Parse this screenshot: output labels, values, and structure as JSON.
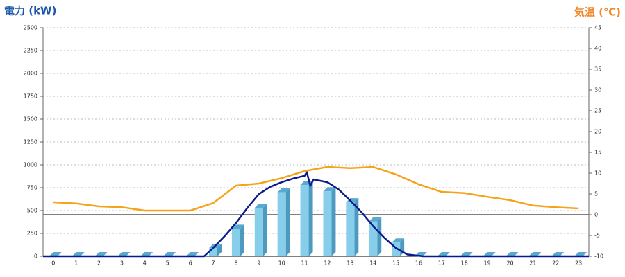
{
  "chart_data": {
    "type": "combo",
    "y_label": "電力 (kW)",
    "y2_label": "気温 (℃)",
    "categories": [
      "0",
      "1",
      "2",
      "3",
      "4",
      "5",
      "6",
      "7",
      "8",
      "9",
      "10",
      "11",
      "12",
      "13",
      "14",
      "15",
      "16",
      "17",
      "18",
      "19",
      "20",
      "21",
      "22",
      "23"
    ],
    "xlim": [
      -0.45,
      23.45
    ],
    "ylim": [
      0,
      2500
    ],
    "yticks": [
      0,
      250,
      500,
      750,
      1000,
      1250,
      1500,
      1750,
      2000,
      2250,
      2500
    ],
    "y2lim": [
      -10,
      45
    ],
    "y2ticks": [
      -10,
      -5,
      0,
      5,
      10,
      15,
      20,
      25,
      30,
      35,
      40,
      45
    ],
    "grid": true,
    "series": [
      {
        "type": "bar",
        "color": "#87ceeb",
        "values": [
          0,
          0,
          0,
          0,
          0,
          0,
          0,
          90,
          300,
          530,
          700,
          780,
          710,
          590,
          380,
          150,
          0,
          0,
          0,
          0,
          0,
          0,
          0,
          0
        ]
      },
      {
        "type": "line",
        "color": "#0a1a8c",
        "x": [
          -0.45,
          6.6,
          7,
          7.5,
          8,
          8.5,
          9,
          9.5,
          10,
          10.5,
          11,
          11.1,
          11.25,
          11.4,
          12,
          12.5,
          13,
          13.5,
          14,
          14.5,
          15,
          15.5,
          16.2,
          23.45
        ],
        "values": [
          0,
          0,
          91,
          220,
          364,
          530,
          680,
          760,
          810,
          850,
          880,
          920,
          773,
          840,
          810,
          730,
          610,
          480,
          330,
          200,
          90,
          20,
          0,
          0
        ]
      },
      {
        "type": "line",
        "axis": "y2",
        "color": "#f5a31a",
        "values": [
          3.0,
          2.7,
          2.0,
          1.8,
          1.0,
          1.0,
          1.0,
          2.8,
          7.0,
          7.5,
          8.8,
          10.5,
          11.5,
          11.2,
          11.5,
          9.7,
          7.3,
          5.5,
          5.2,
          4.3,
          3.5,
          2.2,
          1.8,
          1.5
        ]
      }
    ]
  }
}
